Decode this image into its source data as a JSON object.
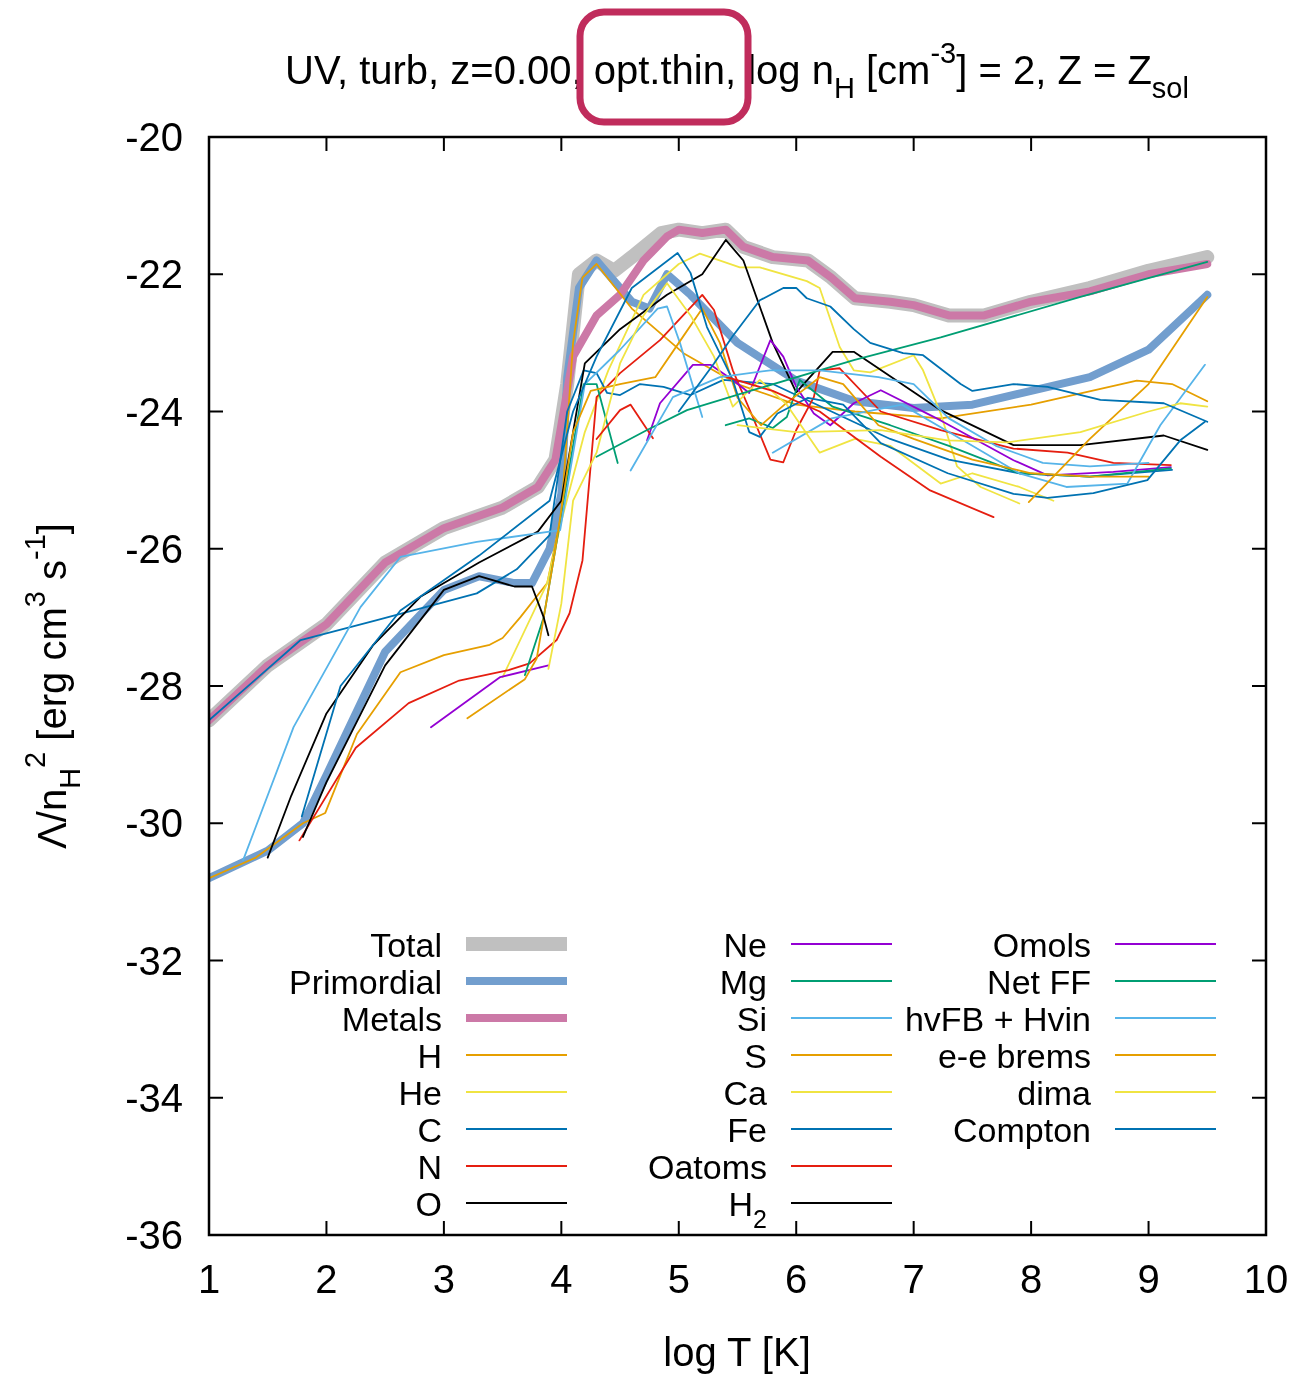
{
  "chart_data": {
    "type": "line",
    "title": "UV, turb, z=0.00, opt.thin, log n$_{H}$ [cm$^{-3}$] = 2, Z = Z$_{sol}$",
    "xlabel": "log T [K]",
    "ylabel": "Λ/n$_{H}$$^{2}$ [erg cm$^{3}$ s$^{-1}$]",
    "xlim": [
      1,
      10
    ],
    "xticks": [
      1,
      2,
      3,
      4,
      5,
      6,
      7,
      8,
      9,
      10
    ],
    "ylim": [
      -36,
      -20
    ],
    "yticks": [
      -36,
      -34,
      -32,
      -30,
      -28,
      -26,
      -24,
      -22,
      -20
    ],
    "grid": false,
    "legend": "bottom",
    "marker": "none",
    "line_style": "solid",
    "series": [
      {
        "name": "Total",
        "color": "#c0c0c0",
        "x": [
          1,
          1.5,
          2,
          2.5,
          3,
          3.5,
          3.8,
          3.95,
          4.05,
          4.15,
          4.3,
          4.45,
          4.6,
          4.85,
          5.0,
          5.2,
          5.4,
          5.55,
          5.8,
          6.1,
          6.3,
          6.5,
          6.8,
          7.0,
          7.3,
          7.6,
          8.0,
          8.5,
          9.0,
          9.5
        ],
        "values": [
          -28.5,
          -27.7,
          -27.1,
          -26.2,
          -25.7,
          -25.4,
          -25.1,
          -24.7,
          -23.6,
          -22.0,
          -21.8,
          -21.95,
          -21.75,
          -21.4,
          -21.35,
          -21.4,
          -21.35,
          -21.6,
          -21.75,
          -21.8,
          -22.05,
          -22.35,
          -22.4,
          -22.45,
          -22.6,
          -22.6,
          -22.4,
          -22.2,
          -21.95,
          -21.75
        ]
      },
      {
        "name": "Primordial",
        "color": "#729ece",
        "x": [
          1,
          1.5,
          1.8,
          2.0,
          2.5,
          3.0,
          3.3,
          3.6,
          3.75,
          3.9,
          4.0,
          4.05,
          4.15,
          4.3,
          4.6,
          4.75,
          4.9,
          5.1,
          5.5,
          6.0,
          6.5,
          7.0,
          7.5,
          8.0,
          8.5,
          9.0,
          9.5
        ],
        "values": [
          -30.8,
          -30.4,
          -30.0,
          -29.3,
          -27.5,
          -26.6,
          -26.4,
          -26.5,
          -26.5,
          -26.0,
          -25.2,
          -23.5,
          -22.2,
          -21.8,
          -22.4,
          -22.5,
          -22.0,
          -22.3,
          -23.0,
          -23.55,
          -23.85,
          -23.95,
          -23.9,
          -23.7,
          -23.5,
          -23.1,
          -22.3
        ]
      },
      {
        "name": "Metals",
        "color": "#cc79a7",
        "x": [
          1,
          1.5,
          2,
          2.5,
          3,
          3.5,
          3.8,
          3.95,
          4.1,
          4.3,
          4.5,
          4.7,
          4.9,
          5.0,
          5.2,
          5.4,
          5.55,
          5.8,
          6.1,
          6.3,
          6.5,
          6.8,
          7.0,
          7.3,
          7.6,
          8.0,
          8.5,
          9.0,
          9.5
        ],
        "values": [
          -28.5,
          -27.7,
          -27.1,
          -26.2,
          -25.7,
          -25.4,
          -25.1,
          -24.7,
          -23.2,
          -22.6,
          -22.3,
          -21.8,
          -21.45,
          -21.35,
          -21.4,
          -21.35,
          -21.6,
          -21.75,
          -21.8,
          -22.05,
          -22.35,
          -22.4,
          -22.45,
          -22.6,
          -22.6,
          -22.4,
          -22.25,
          -22.0,
          -21.85
        ]
      },
      {
        "name": "H",
        "color": "#e69f00",
        "x": [
          1,
          1.4,
          1.8,
          1.99,
          2.26,
          2.63,
          3.0,
          3.39,
          3.5,
          3.65,
          3.88,
          4.0,
          4.1,
          4.18,
          4.3,
          4.6,
          5.04,
          5.5,
          6.0,
          6.5,
          7.23,
          8.0,
          8.9,
          9.2,
          9.5
        ],
        "values": [
          -30.8,
          -30.5,
          -30.0,
          -29.85,
          -28.7,
          -27.8,
          -27.55,
          -27.4,
          -27.3,
          -27.0,
          -26.5,
          -25.5,
          -23.0,
          -22.05,
          -21.85,
          -22.5,
          -23.15,
          -23.6,
          -23.9,
          -24.0,
          -24.1,
          -23.9,
          -23.55,
          -23.6,
          -23.85
        ]
      },
      {
        "name": "He",
        "color": "#f0e442",
        "x": [
          3.5,
          3.88,
          4.0,
          4.2,
          4.4,
          4.7,
          5.0,
          5.18,
          5.52,
          5.69,
          6.09,
          6.2,
          6.37,
          6.49,
          6.63,
          7.0,
          7.08,
          7.23,
          7.37,
          7.57,
          7.9
        ],
        "values": [
          -27.87,
          -26.5,
          -25.6,
          -24.3,
          -23.4,
          -22.3,
          -21.85,
          -21.7,
          -21.9,
          -21.9,
          -22.1,
          -22.2,
          -23.06,
          -23.4,
          -23.43,
          -23.18,
          -23.4,
          -24.03,
          -24.8,
          -25.1,
          -25.34
        ]
      },
      {
        "name": "C",
        "color": "#0072b2",
        "x": [
          1,
          1.78,
          2.43,
          3.28,
          3.62,
          3.9,
          4.05,
          4.19,
          4.3,
          4.39,
          4.5,
          4.67,
          4.87,
          5.1,
          5.38,
          5.8,
          6.3,
          6.8,
          7.3,
          7.9,
          8.5,
          9.2
        ],
        "values": [
          -28.5,
          -27.33,
          -27.04,
          -26.65,
          -26.3,
          -25.8,
          -24.0,
          -23.4,
          -23.44,
          -23.73,
          -23.76,
          -23.6,
          -23.64,
          -23.76,
          -23.54,
          -23.6,
          -24.0,
          -24.4,
          -24.7,
          -24.9,
          -24.95,
          -24.85
        ]
      },
      {
        "name": "N",
        "color": "#e51e10",
        "x": [
          1.77,
          2.25,
          2.7,
          3.13,
          3.55,
          3.73,
          3.96,
          4.07,
          4.18,
          4.3,
          4.5,
          4.84,
          5.2,
          5.3,
          5.46,
          5.63,
          5.78,
          5.89,
          6.0,
          6.15,
          6.2,
          6.37,
          6.72,
          7.23,
          7.85,
          8.31,
          8.7,
          9.19
        ],
        "values": [
          -30.25,
          -28.9,
          -28.25,
          -27.92,
          -27.77,
          -27.67,
          -27.33,
          -26.94,
          -26.17,
          -23.79,
          -23.44,
          -22.96,
          -22.3,
          -22.52,
          -23.4,
          -24.08,
          -24.7,
          -24.74,
          -24.27,
          -23.79,
          -23.4,
          -23.37,
          -24.0,
          -24.27,
          -24.54,
          -24.6,
          -24.75,
          -24.78
        ]
      },
      {
        "name": "O",
        "color": "#000000",
        "x": [
          1.5,
          1.7,
          2.0,
          2.4,
          2.8,
          3.3,
          3.8,
          4.0,
          4.1,
          4.2,
          4.5,
          4.9,
          5.2,
          5.4,
          5.55,
          5.8,
          6.0,
          6.31,
          6.49,
          7.23,
          7.85,
          8.42,
          9.13,
          9.5
        ],
        "values": [
          -30.5,
          -29.6,
          -28.4,
          -27.4,
          -26.7,
          -26.2,
          -25.75,
          -25.3,
          -24.3,
          -23.3,
          -22.8,
          -22.3,
          -22.0,
          -21.5,
          -21.8,
          -23.0,
          -23.72,
          -23.13,
          -23.13,
          -23.98,
          -24.49,
          -24.49,
          -24.35,
          -24.56
        ]
      },
      {
        "name": "Ne",
        "color": "#9400d3",
        "x": [
          2.89,
          3.48,
          3.89,
          4.3,
          4.73,
          4.84,
          5.12,
          5.27,
          5.46,
          5.6,
          5.78,
          5.89,
          6.0,
          6.15,
          6.29,
          6.49,
          6.72,
          7.23,
          7.85,
          8.14,
          8.7,
          9.19
        ],
        "values": [
          -28.6,
          -27.87,
          -27.7,
          null,
          -24.42,
          -23.88,
          -23.32,
          -23.32,
          -23.54,
          -23.73,
          -22.96,
          -23.2,
          -23.64,
          -24.03,
          -24.2,
          -23.88,
          -23.69,
          -24.13,
          -24.71,
          -24.93,
          -24.88,
          -24.81
        ]
      },
      {
        "name": "Mg",
        "color": "#009e73",
        "x": [
          3.69,
          3.85,
          4.02,
          4.19,
          4.3,
          4.48,
          4.9,
          5.4,
          5.6,
          5.8,
          5.92,
          6.03,
          6.31,
          6.8,
          7.3,
          7.9,
          8.5,
          9.19
        ],
        "values": [
          -27.84,
          -27.0,
          -25.3,
          -23.6,
          -23.6,
          -24.75,
          null,
          -24.2,
          -24.1,
          -24.24,
          -24.08,
          -23.54,
          -23.93,
          -24.2,
          -24.5,
          -24.9,
          -24.95,
          -24.83
        ]
      },
      {
        "name": "Si",
        "color": "#56b4e9",
        "x": [
          1.29,
          1.72,
          2.29,
          2.63,
          3.28,
          3.99,
          4.2,
          4.5,
          4.82,
          4.9,
          5.01,
          5.2,
          5.5,
          5.8,
          6.3,
          6.9,
          7.3,
          7.9,
          8.3,
          8.82,
          9.1,
          9.48
        ],
        "values": [
          -30.54,
          -28.6,
          -26.85,
          -26.12,
          -25.9,
          -25.73,
          -23.6,
          -23.1,
          -22.5,
          -22.47,
          -23.0,
          -24.08,
          null,
          -24.6,
          -24.1,
          -23.9,
          -24.3,
          -24.9,
          -25.1,
          -25.05,
          -24.2,
          -23.32
        ]
      },
      {
        "name": "S",
        "color": "#e69f00",
        "x": [
          3.2,
          3.69,
          3.79,
          3.95,
          4.1,
          4.25,
          4.5,
          4.8,
          5.0,
          5.2,
          5.35,
          5.5,
          5.7,
          5.9,
          6.2,
          6.4,
          6.7,
          7.0,
          7.5,
          8.0,
          8.5,
          9.0
        ],
        "values": [
          -28.47,
          -27.9,
          -27.6,
          -26.0,
          -24.3,
          -23.7,
          -23.6,
          -23.5,
          -23.0,
          -22.5,
          -23.0,
          -23.8,
          -24.2,
          -23.9,
          -23.5,
          -23.6,
          -24.2,
          -24.4,
          -24.7,
          -24.9,
          -24.95,
          -24.95
        ]
      },
      {
        "name": "Ca",
        "color": "#f0e442",
        "x": [
          3.89,
          4.0,
          4.1,
          4.3,
          4.5,
          4.7,
          4.9,
          5.1,
          5.3,
          5.46,
          5.69,
          5.92,
          6.2,
          6.5,
          6.8,
          7.23,
          7.5,
          7.9,
          8.19
        ],
        "values": [
          -27.75,
          -26.8,
          -25.3,
          -24.6,
          -23.3,
          -22.6,
          -22.13,
          -22.6,
          -23.2,
          -23.93,
          -23.54,
          -23.9,
          -24.6,
          -24.4,
          -24.5,
          -25.05,
          -24.9,
          -25.1,
          -25.3
        ]
      },
      {
        "name": "Fe",
        "color": "#0072b2",
        "x": [
          1.79,
          2.12,
          2.63,
          3.3,
          3.9,
          4.1,
          4.3,
          4.6,
          4.99,
          5.1,
          5.24,
          5.46,
          5.6,
          5.69,
          5.84,
          6.1,
          6.4,
          6.72,
          7.29,
          7.85,
          8.14,
          8.53,
          8.99,
          9.27,
          9.48
        ],
        "values": [
          -29.9,
          -28.0,
          -26.9,
          -26.1,
          -25.3,
          -24.0,
          -23.2,
          -22.2,
          -21.69,
          -21.98,
          -22.77,
          -23.54,
          -24.3,
          -24.37,
          -24.03,
          -23.8,
          -23.9,
          -24.46,
          -24.9,
          -25.2,
          -25.26,
          -25.19,
          -25.0,
          -24.42,
          -24.15
        ]
      },
      {
        "name": "Oatoms",
        "color": "#e51e10",
        "x": [
          4.3,
          4.5,
          4.59,
          4.78,
          5.0,
          5.41,
          5.8,
          6.2,
          6.72,
          7.14,
          7.68
        ],
        "values": [
          -24.4,
          -23.98,
          -23.9,
          -24.39,
          null,
          -23.5,
          -23.7,
          -24.0,
          -24.66,
          -25.15,
          -25.54
        ]
      },
      {
        "name": "H$_{2}$",
        "color": "#000000",
        "x": [
          1.8,
          2.0,
          2.5,
          3.0,
          3.3,
          3.6,
          3.75,
          3.85,
          3.89
        ],
        "values": [
          -30.2,
          -29.4,
          -27.7,
          -26.6,
          -26.4,
          -26.55,
          -26.55,
          -27.0,
          -27.26
        ]
      },
      {
        "name": "Omols",
        "color": "#9400d3"
      },
      {
        "name": "Net FF",
        "color": "#009e73",
        "x": [
          4.3,
          4.73,
          5.07,
          5.63,
          6.49,
          7.23,
          8.42,
          9.5
        ],
        "values": [
          -24.66,
          -24.27,
          -23.98,
          -23.69,
          -23.25,
          -22.92,
          -22.33,
          -21.82
        ]
      },
      {
        "name": "hvFB + Hvin",
        "color": "#56b4e9",
        "x": [
          4.59,
          4.95,
          5.35,
          5.78,
          6.2,
          6.7,
          7.0,
          7.3,
          7.7,
          8.1,
          8.5,
          9.0
        ],
        "values": [
          -24.86,
          -23.79,
          -23.5,
          -23.4,
          -23.4,
          -23.5,
          -23.6,
          -24.1,
          -24.5,
          -24.75,
          -24.8,
          -24.75
        ]
      },
      {
        "name": "e-e brems",
        "color": "#e69f00",
        "x": [
          7.98,
          8.5,
          9.0,
          9.5
        ],
        "values": [
          -25.32,
          -24.4,
          -23.6,
          -22.33
        ]
      },
      {
        "name": "dima",
        "color": "#f0e442",
        "x": [
          5.5,
          6.0,
          6.72,
          7.29,
          7.8,
          8.42,
          9.0,
          9.27,
          9.5
        ],
        "values": [
          -24.2,
          -24.3,
          -24.27,
          -24.42,
          -24.45,
          -24.3,
          -24.0,
          -23.88,
          -23.93
        ]
      },
      {
        "name": "Compton",
        "color": "#0072b2",
        "x": [
          5.0,
          5.3,
          5.46,
          5.69,
          5.89,
          6.0,
          6.09,
          6.29,
          6.49,
          6.63,
          6.91,
          7.08,
          7.4,
          7.5,
          7.85,
          8.14,
          8.59,
          9.13,
          9.5
        ],
        "values": [
          -24.0,
          -23.3,
          -22.9,
          -22.38,
          -22.2,
          -22.2,
          -22.35,
          -22.47,
          -22.8,
          -23.0,
          -23.15,
          -23.18,
          -23.6,
          -23.7,
          -23.6,
          -23.64,
          -23.83,
          -23.88,
          -24.15
        ]
      }
    ]
  }
}
